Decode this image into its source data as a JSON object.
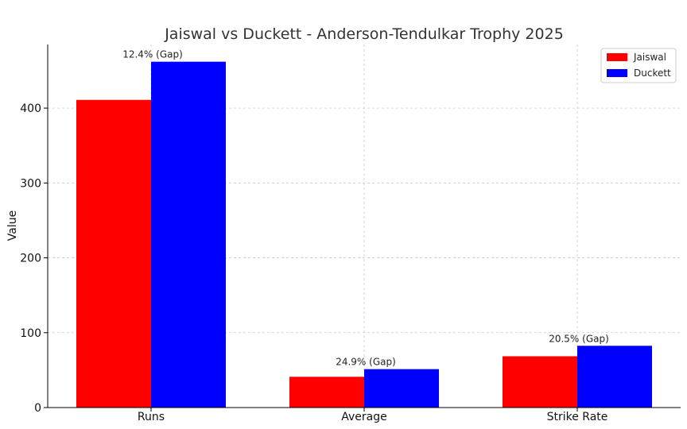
{
  "chart_data": {
    "type": "bar",
    "title": "Jaiswal vs Duckett - Anderson-Tendulkar Trophy 2025",
    "xlabel": "",
    "ylabel": "Value",
    "categories": [
      "Runs",
      "Average",
      "Strike Rate"
    ],
    "series": [
      {
        "name": "Jaiswal",
        "color": "#ff0000",
        "values": [
          411,
          41.1,
          68.5
        ]
      },
      {
        "name": "Duckett",
        "color": "#0000ff",
        "values": [
          462,
          51.3,
          82.5
        ]
      }
    ],
    "annotations": [
      "12.4% (Gap)",
      "24.9% (Gap)",
      "20.5% (Gap)"
    ],
    "ylim": [
      0,
      485
    ],
    "yticks": [
      0,
      100,
      200,
      300,
      400
    ],
    "grid": true,
    "legend_position": "top-right"
  }
}
